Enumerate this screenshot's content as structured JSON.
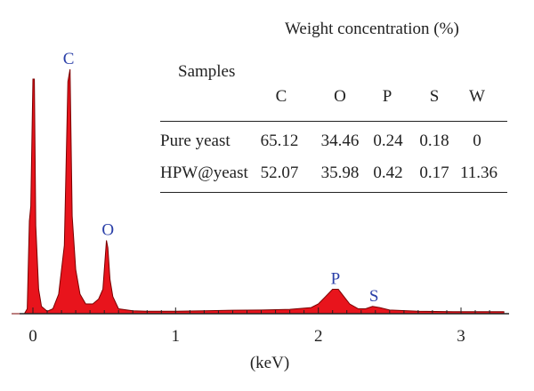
{
  "chart_data": {
    "type": "area",
    "xlabel": "(keV)",
    "xlim": [
      -0.15,
      3.3
    ],
    "ylim": [
      0,
      100
    ],
    "x_ticks": [
      0,
      1,
      2,
      3
    ],
    "x_tick_labels": [
      "0",
      "1",
      "2",
      "3"
    ],
    "grid": false,
    "fill_color": "#e8141c",
    "line_color": "#7a0000",
    "spectrum": [
      [
        -0.15,
        0
      ],
      [
        -0.06,
        0
      ],
      [
        -0.04,
        2
      ],
      [
        -0.025,
        38
      ],
      [
        -0.015,
        44
      ],
      [
        0.0,
        96
      ],
      [
        0.01,
        96
      ],
      [
        0.02,
        36
      ],
      [
        0.04,
        10
      ],
      [
        0.06,
        3
      ],
      [
        0.1,
        1
      ],
      [
        0.14,
        2
      ],
      [
        0.18,
        8
      ],
      [
        0.22,
        28
      ],
      [
        0.245,
        95
      ],
      [
        0.26,
        100
      ],
      [
        0.275,
        40
      ],
      [
        0.3,
        18
      ],
      [
        0.33,
        8
      ],
      [
        0.37,
        4
      ],
      [
        0.42,
        4
      ],
      [
        0.46,
        6
      ],
      [
        0.49,
        10
      ],
      [
        0.515,
        30
      ],
      [
        0.525,
        27
      ],
      [
        0.54,
        14
      ],
      [
        0.56,
        7
      ],
      [
        0.6,
        2
      ],
      [
        0.7,
        1.2
      ],
      [
        0.8,
        1
      ],
      [
        1.0,
        1
      ],
      [
        1.2,
        1.2
      ],
      [
        1.4,
        1.4
      ],
      [
        1.6,
        1.5
      ],
      [
        1.8,
        1.8
      ],
      [
        1.95,
        2.5
      ],
      [
        2.0,
        4
      ],
      [
        2.05,
        7
      ],
      [
        2.1,
        10
      ],
      [
        2.14,
        10
      ],
      [
        2.18,
        7
      ],
      [
        2.22,
        4
      ],
      [
        2.28,
        2
      ],
      [
        2.33,
        2
      ],
      [
        2.38,
        3
      ],
      [
        2.43,
        2.5
      ],
      [
        2.5,
        1.5
      ],
      [
        2.7,
        1
      ],
      [
        3.0,
        0.8
      ],
      [
        3.3,
        0.8
      ]
    ],
    "peaks": [
      {
        "label": "C",
        "x": 0.25,
        "y": 100
      },
      {
        "label": "O",
        "x": 0.525,
        "y": 30
      },
      {
        "label": "P",
        "x": 2.12,
        "y": 10
      },
      {
        "label": "S",
        "x": 2.39,
        "y": 3
      }
    ]
  },
  "table": {
    "title": "Weight concentration (%)",
    "samples_header": "Samples",
    "columns": [
      "C",
      "O",
      "P",
      "S",
      "W"
    ],
    "rows": [
      {
        "label": "Pure yeast",
        "values": [
          "65.12",
          "34.46",
          "0.24",
          "0.18",
          "0"
        ]
      },
      {
        "label": "HPW@yeast",
        "values": [
          "52.07",
          "35.98",
          "0.42",
          "0.17",
          "11.36"
        ]
      }
    ]
  }
}
